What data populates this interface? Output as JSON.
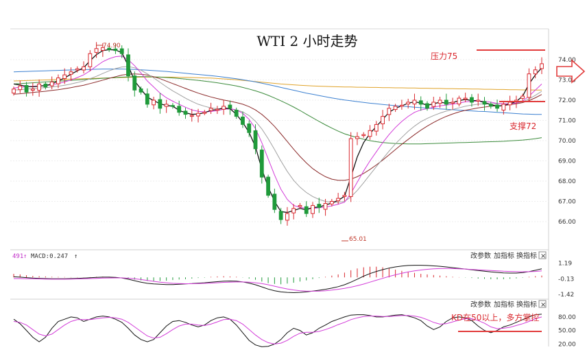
{
  "chart_data": {
    "type": "candlestick",
    "title": "WTI 2 小时走势",
    "price_axis": {
      "ticks": [
        74.0,
        73.0,
        72.0,
        71.0,
        70.0,
        69.0,
        68.0,
        67.0,
        66.0
      ],
      "tick_labels": [
        "74.00",
        "73.00",
        "72.00",
        "71.00",
        "70.00",
        "69.00",
        "68.00",
        "67.00",
        "66.00"
      ],
      "range": [
        64.5,
        75.5
      ],
      "position": "right"
    },
    "annotations": {
      "resistance_label": "压力75",
      "resistance_value": 75,
      "support_label": "支撑72",
      "support_value": 72,
      "high_label": "74.90",
      "high_value": 74.9,
      "low_label": "65.01",
      "low_value": 65.01
    },
    "series": {
      "close": [
        72.55,
        72.7,
        72.4,
        72.55,
        72.8,
        72.65,
        72.9,
        73.1,
        73.25,
        73.4,
        73.55,
        73.65,
        74.3,
        74.55,
        74.6,
        74.5,
        74.45,
        74.3,
        73.2,
        72.5,
        72.4,
        71.8,
        72.0,
        71.6,
        71.8,
        71.7,
        71.4,
        71.3,
        71.25,
        71.35,
        71.4,
        71.6,
        71.55,
        71.7,
        71.6,
        71.2,
        70.8,
        70.4,
        69.6,
        68.2,
        67.3,
        66.6,
        66.1,
        66.4,
        66.65,
        66.8,
        66.4,
        66.8,
        66.7,
        66.9,
        67.0,
        67.15,
        67.3,
        70.1,
        70.2,
        70.3,
        70.5,
        70.8,
        71.2,
        71.6,
        71.7,
        71.75,
        71.9,
        72.0,
        71.8,
        71.6,
        71.9,
        72.0,
        71.8,
        71.9,
        72.1,
        72.1,
        71.9,
        72.0,
        71.8,
        71.7,
        71.6,
        71.8,
        71.9,
        72.0,
        72.2,
        73.3,
        73.5,
        73.8
      ],
      "ma_black": [
        72.8,
        72.75,
        72.68,
        72.66,
        72.7,
        72.72,
        72.8,
        72.95,
        73.1,
        73.28,
        73.45,
        73.6,
        73.95,
        74.25,
        74.45,
        74.5,
        74.48,
        74.35,
        73.7,
        72.95,
        72.55,
        72.15,
        71.98,
        71.82,
        71.74,
        71.7,
        71.5,
        71.38,
        71.3,
        71.32,
        71.38,
        71.5,
        71.54,
        71.62,
        71.58,
        71.3,
        70.9,
        70.4,
        69.7,
        68.6,
        67.7,
        67.0,
        66.5,
        66.45,
        66.55,
        66.65,
        66.58,
        66.7,
        66.72,
        66.82,
        66.92,
        67.05,
        67.25,
        68.2,
        69.2,
        69.9,
        70.35,
        70.7,
        71.05,
        71.4,
        71.6,
        71.72,
        71.85,
        71.92,
        71.86,
        71.75,
        71.82,
        71.9,
        71.85,
        71.88,
        71.98,
        72.04,
        71.98,
        71.98,
        71.88,
        71.78,
        71.7,
        71.74,
        71.82,
        71.94,
        72.2,
        72.8,
        73.25,
        73.6
      ],
      "ma_magenta": [
        72.6,
        72.64,
        72.66,
        72.68,
        72.7,
        72.72,
        72.76,
        72.82,
        72.9,
        73.0,
        73.12,
        73.25,
        73.45,
        73.68,
        73.9,
        74.05,
        74.15,
        74.18,
        74.0,
        73.7,
        73.35,
        72.95,
        72.65,
        72.35,
        72.12,
        71.95,
        71.8,
        71.65,
        71.52,
        71.45,
        71.42,
        71.44,
        71.48,
        71.55,
        71.58,
        71.52,
        71.35,
        71.05,
        70.6,
        69.9,
        69.1,
        68.3,
        67.6,
        67.1,
        66.8,
        66.7,
        66.65,
        66.65,
        66.68,
        66.72,
        66.78,
        66.86,
        66.96,
        67.4,
        67.95,
        68.5,
        69.0,
        69.45,
        69.9,
        70.3,
        70.65,
        70.95,
        71.2,
        71.4,
        71.52,
        71.58,
        71.65,
        71.72,
        71.76,
        71.8,
        71.86,
        71.92,
        71.94,
        71.96,
        71.94,
        71.9,
        71.84,
        71.82,
        71.82,
        71.86,
        71.96,
        72.2,
        72.5,
        72.8
      ],
      "ma_gray": [
        72.5,
        72.52,
        72.55,
        72.57,
        72.6,
        72.62,
        72.65,
        72.69,
        72.74,
        72.8,
        72.87,
        72.95,
        73.06,
        73.18,
        73.32,
        73.45,
        73.56,
        73.64,
        73.66,
        73.6,
        73.48,
        73.3,
        73.1,
        72.88,
        72.66,
        72.46,
        72.28,
        72.1,
        71.94,
        71.8,
        71.7,
        71.62,
        71.58,
        71.56,
        71.56,
        71.52,
        71.42,
        71.24,
        70.96,
        70.58,
        70.1,
        69.56,
        69.0,
        68.48,
        68.04,
        67.7,
        67.44,
        67.24,
        67.1,
        67.0,
        66.96,
        66.96,
        67.0,
        67.22,
        67.54,
        67.92,
        68.32,
        68.72,
        69.1,
        69.48,
        69.84,
        70.16,
        70.46,
        70.72,
        70.94,
        71.1,
        71.24,
        71.36,
        71.46,
        71.54,
        71.62,
        71.7,
        71.76,
        71.8,
        71.82,
        71.82,
        71.82,
        71.82,
        71.84,
        71.86,
        71.92,
        72.06,
        72.24,
        72.44
      ],
      "ma_brown": [
        72.3,
        72.32,
        72.35,
        72.38,
        72.41,
        72.44,
        72.48,
        72.52,
        72.57,
        72.62,
        72.68,
        72.74,
        72.82,
        72.9,
        72.99,
        73.08,
        73.16,
        73.24,
        73.28,
        73.3,
        73.28,
        73.24,
        73.16,
        73.06,
        72.94,
        72.82,
        72.7,
        72.58,
        72.46,
        72.35,
        72.25,
        72.16,
        72.08,
        72.01,
        71.95,
        71.88,
        71.8,
        71.68,
        71.52,
        71.3,
        71.02,
        70.7,
        70.34,
        69.96,
        69.58,
        69.22,
        68.9,
        68.62,
        68.4,
        68.22,
        68.1,
        68.04,
        68.04,
        68.1,
        68.22,
        68.38,
        68.58,
        68.8,
        69.04,
        69.3,
        69.56,
        69.82,
        70.06,
        70.3,
        70.52,
        70.72,
        70.9,
        71.06,
        71.2,
        71.32,
        71.42,
        71.5,
        71.56,
        71.62,
        71.66,
        71.7,
        71.72,
        71.74,
        71.78,
        71.82,
        71.88,
        71.98,
        72.12,
        72.28
      ],
      "ma_yellow": [
        72.95,
        72.96,
        72.97,
        72.98,
        72.99,
        73.0,
        73.01,
        73.02,
        73.03,
        73.04,
        73.05,
        73.06,
        73.07,
        73.08,
        73.09,
        73.1,
        73.11,
        73.12,
        73.13,
        73.13,
        73.14,
        73.14,
        73.14,
        73.14,
        73.14,
        73.14,
        73.13,
        73.13,
        73.12,
        73.11,
        73.1,
        73.09,
        73.07,
        73.05,
        73.03,
        73.01,
        72.98,
        72.95,
        72.92,
        72.89,
        72.86,
        72.83,
        72.8,
        72.78,
        72.76,
        72.74,
        72.72,
        72.7,
        72.69,
        72.68,
        72.67,
        72.66,
        72.65,
        72.65,
        72.64,
        72.64,
        72.63,
        72.63,
        72.62,
        72.62,
        72.61,
        72.61,
        72.6,
        72.6,
        72.59,
        72.59,
        72.58,
        72.58,
        72.57,
        72.57,
        72.56,
        72.56,
        72.55,
        72.55,
        72.54,
        72.54,
        72.53,
        72.53,
        72.52,
        72.52,
        72.51,
        72.51,
        72.5,
        72.5
      ],
      "ma_blue": [
        73.4,
        73.41,
        73.42,
        73.43,
        73.44,
        73.45,
        73.46,
        73.47,
        73.48,
        73.49,
        73.5,
        73.51,
        73.52,
        73.53,
        73.54,
        73.54,
        73.54,
        73.54,
        73.53,
        73.52,
        73.5,
        73.48,
        73.46,
        73.44,
        73.42,
        73.39,
        73.36,
        73.33,
        73.3,
        73.27,
        73.24,
        73.21,
        73.18,
        73.14,
        73.1,
        73.06,
        73.01,
        72.96,
        72.9,
        72.84,
        72.77,
        72.7,
        72.63,
        72.56,
        72.49,
        72.42,
        72.35,
        72.29,
        72.23,
        72.17,
        72.11,
        72.06,
        72.01,
        71.97,
        71.93,
        71.89,
        71.85,
        71.82,
        71.79,
        71.76,
        71.73,
        71.7,
        71.68,
        71.65,
        71.63,
        71.61,
        71.59,
        71.57,
        71.55,
        71.53,
        71.51,
        71.49,
        71.47,
        71.45,
        71.44,
        71.42,
        71.4,
        71.38,
        71.36,
        71.34,
        71.32,
        71.31,
        71.3,
        71.3
      ],
      "ma_green": [
        72.8,
        72.82,
        72.84,
        72.86,
        72.88,
        72.9,
        72.92,
        72.94,
        72.96,
        72.98,
        73.0,
        73.02,
        73.04,
        73.06,
        73.08,
        73.1,
        73.12,
        73.14,
        73.15,
        73.16,
        73.16,
        73.16,
        73.15,
        73.14,
        73.12,
        73.1,
        73.07,
        73.04,
        73.01,
        72.98,
        72.94,
        72.9,
        72.86,
        72.81,
        72.76,
        72.7,
        72.63,
        72.55,
        72.46,
        72.36,
        72.24,
        72.11,
        71.97,
        71.82,
        71.66,
        71.49,
        71.31,
        71.13,
        70.95,
        70.78,
        70.62,
        70.47,
        70.34,
        70.24,
        70.15,
        70.07,
        70.0,
        69.95,
        69.91,
        69.88,
        69.86,
        69.85,
        69.84,
        69.84,
        69.84,
        69.85,
        69.86,
        69.87,
        69.88,
        69.89,
        69.9,
        69.91,
        69.92,
        69.93,
        69.94,
        69.95,
        69.96,
        69.97,
        69.99,
        70.01,
        70.03,
        70.06,
        70.1,
        70.15
      ]
    },
    "macd": {
      "label": "MACD:0.247",
      "prefix": "491",
      "axis_labels": [
        "1.19",
        "-0.13",
        "-1.42"
      ],
      "axis_values": [
        1.19,
        -0.13,
        -1.42
      ],
      "range": [
        -1.6,
        1.4
      ],
      "histogram": [
        0.3,
        0.25,
        0.18,
        0.12,
        0.1,
        0.08,
        0.05,
        0.04,
        0.03,
        0.02,
        0.02,
        0.01,
        0.02,
        0.05,
        0.06,
        0.05,
        0.02,
        -0.02,
        -0.1,
        -0.18,
        -0.25,
        -0.3,
        -0.32,
        -0.3,
        -0.28,
        -0.22,
        -0.18,
        -0.15,
        -0.1,
        -0.05,
        -0.03,
        0.05,
        0.08,
        0.1,
        0.08,
        0.05,
        -0.02,
        -0.1,
        -0.2,
        -0.35,
        -0.48,
        -0.55,
        -0.58,
        -0.52,
        -0.45,
        -0.35,
        -0.25,
        -0.15,
        -0.05,
        0.05,
        0.15,
        0.25,
        0.4,
        0.6,
        0.75,
        0.85,
        0.9,
        0.9,
        0.85,
        0.75,
        0.65,
        0.55,
        0.45,
        0.38,
        0.3,
        0.25,
        0.2,
        0.15,
        0.1,
        0.05,
        0.02,
        -0.02,
        -0.05,
        -0.1,
        -0.12,
        -0.15,
        -0.16,
        -0.15,
        -0.12,
        -0.08,
        -0.03,
        0.05,
        0.1,
        0.15
      ],
      "dif": [
        0.05,
        0.02,
        -0.02,
        -0.06,
        -0.08,
        -0.1,
        -0.12,
        -0.12,
        -0.12,
        -0.1,
        -0.08,
        -0.06,
        -0.03,
        0.0,
        0.02,
        0.02,
        0.0,
        -0.05,
        -0.15,
        -0.28,
        -0.4,
        -0.5,
        -0.55,
        -0.58,
        -0.6,
        -0.6,
        -0.58,
        -0.55,
        -0.52,
        -0.48,
        -0.45,
        -0.4,
        -0.36,
        -0.32,
        -0.3,
        -0.32,
        -0.38,
        -0.48,
        -0.62,
        -0.8,
        -0.98,
        -1.12,
        -1.22,
        -1.26,
        -1.28,
        -1.26,
        -1.22,
        -1.15,
        -1.08,
        -1.0,
        -0.9,
        -0.78,
        -0.62,
        -0.4,
        -0.15,
        0.1,
        0.32,
        0.5,
        0.65,
        0.78,
        0.88,
        0.95,
        1.0,
        1.02,
        1.02,
        1.0,
        0.97,
        0.93,
        0.88,
        0.82,
        0.76,
        0.7,
        0.64,
        0.58,
        0.52,
        0.46,
        0.42,
        0.38,
        0.36,
        0.36,
        0.4,
        0.48,
        0.6,
        0.72
      ],
      "dea": [
        -0.1,
        -0.1,
        -0.11,
        -0.12,
        -0.13,
        -0.14,
        -0.15,
        -0.15,
        -0.15,
        -0.14,
        -0.13,
        -0.12,
        -0.1,
        -0.08,
        -0.06,
        -0.05,
        -0.04,
        -0.04,
        -0.07,
        -0.12,
        -0.18,
        -0.26,
        -0.33,
        -0.4,
        -0.45,
        -0.5,
        -0.52,
        -0.53,
        -0.53,
        -0.52,
        -0.5,
        -0.48,
        -0.45,
        -0.42,
        -0.4,
        -0.38,
        -0.38,
        -0.4,
        -0.45,
        -0.52,
        -0.62,
        -0.74,
        -0.86,
        -0.97,
        -1.06,
        -1.12,
        -1.15,
        -1.16,
        -1.15,
        -1.12,
        -1.07,
        -1.0,
        -0.92,
        -0.82,
        -0.7,
        -0.56,
        -0.4,
        -0.24,
        -0.08,
        0.08,
        0.22,
        0.35,
        0.46,
        0.55,
        0.62,
        0.68,
        0.72,
        0.74,
        0.75,
        0.74,
        0.72,
        0.7,
        0.67,
        0.64,
        0.61,
        0.58,
        0.55,
        0.52,
        0.5,
        0.48,
        0.47,
        0.48,
        0.5,
        0.55
      ]
    },
    "kd": {
      "axis_labels": [
        "80.00",
        "50.00",
        "20.00"
      ],
      "axis_values": [
        80,
        50,
        20
      ],
      "range": [
        10,
        95
      ],
      "annotation": "KD在50以上，多方掌控",
      "level": 50,
      "k": [
        75,
        65,
        50,
        35,
        25,
        35,
        55,
        70,
        75,
        80,
        78,
        70,
        75,
        80,
        82,
        80,
        75,
        68,
        55,
        40,
        30,
        25,
        30,
        45,
        60,
        70,
        72,
        68,
        62,
        58,
        62,
        72,
        78,
        80,
        75,
        62,
        45,
        28,
        18,
        14,
        15,
        20,
        30,
        45,
        55,
        50,
        40,
        45,
        55,
        62,
        70,
        75,
        80,
        84,
        85,
        85,
        83,
        80,
        80,
        82,
        84,
        85,
        82,
        78,
        72,
        60,
        52,
        58,
        70,
        78,
        80,
        78,
        72,
        60,
        50,
        45,
        50,
        58,
        62,
        68,
        74,
        80,
        85,
        86
      ],
      "d": [
        70,
        68,
        62,
        52,
        42,
        38,
        42,
        52,
        62,
        70,
        74,
        74,
        74,
        76,
        78,
        79,
        78,
        75,
        68,
        58,
        48,
        38,
        33,
        35,
        43,
        52,
        60,
        64,
        64,
        62,
        61,
        64,
        69,
        74,
        75,
        72,
        64,
        52,
        40,
        30,
        23,
        20,
        22,
        28,
        37,
        44,
        46,
        46,
        48,
        52,
        57,
        63,
        68,
        74,
        78,
        81,
        82,
        82,
        81,
        81,
        82,
        83,
        83,
        82,
        79,
        74,
        68,
        64,
        65,
        69,
        73,
        76,
        76,
        72,
        66,
        58,
        54,
        55,
        57,
        61,
        65,
        70,
        76,
        80
      ]
    },
    "controls": [
      "改参数",
      "加指标",
      "换指标"
    ],
    "close_symbol": "×"
  }
}
